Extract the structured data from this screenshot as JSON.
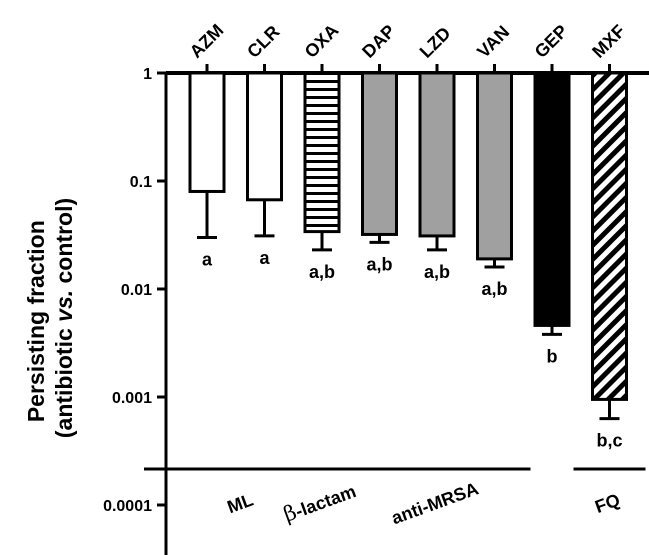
{
  "chart_data": {
    "type": "bar",
    "y_scale": "log",
    "ylim": [
      0.0001,
      1
    ],
    "y_ticks": [
      "1",
      "0.1",
      "0.01",
      "0.001",
      "0.0001"
    ],
    "y_tick_values": [
      1,
      0.1,
      0.01,
      0.001,
      0.0001
    ],
    "ylabel_line1": "Persisting fraction",
    "ylabel_line2_pre": "(antibiotic ",
    "ylabel_line2_italic": "vs.",
    "ylabel_line2_post": " control)",
    "categories": [
      "AZM",
      "CLR",
      "OXA",
      "DAP",
      "LZD",
      "VAN",
      "GEP",
      "MXF"
    ],
    "values": [
      0.08,
      0.067,
      0.034,
      0.032,
      0.031,
      0.019,
      0.0046,
      0.00095
    ],
    "error_low": [
      0.03,
      0.031,
      0.023,
      0.027,
      0.023,
      0.016,
      0.0038,
      0.00063
    ],
    "significance": [
      "a",
      "a",
      "a,b",
      "a,b",
      "a,b",
      "a,b",
      "b",
      "b,c"
    ],
    "fills": [
      "white",
      "white",
      "hstripes",
      "#a0a0a0",
      "#a0a0a0",
      "#a0a0a0",
      "#000000",
      "diagonal"
    ],
    "groups": [
      {
        "label": "ML",
        "from": 0,
        "to": 1
      },
      {
        "label_prefix": "β",
        "label": "-lactam",
        "from": 2,
        "to": 2
      },
      {
        "label": "anti-MRSA",
        "from": 3,
        "to": 5
      },
      {
        "label": "FQ",
        "from": 7,
        "to": 7
      }
    ]
  }
}
